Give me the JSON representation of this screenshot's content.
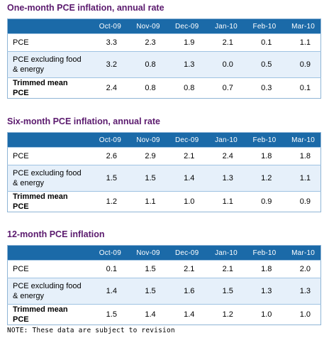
{
  "sections": [
    {
      "title": "One-month PCE inflation, annual rate",
      "columns": [
        "Oct-09",
        "Nov-09",
        "Dec-09",
        "Jan-10",
        "Feb-10",
        "Mar-10"
      ],
      "rows": [
        {
          "label": "PCE",
          "values": [
            "3.3",
            "2.3",
            "1.9",
            "2.1",
            "0.1",
            "1.1"
          ]
        },
        {
          "label": "PCE excluding food & energy",
          "values": [
            "3.2",
            "0.8",
            "1.3",
            "0.0",
            "0.5",
            "0.9"
          ]
        },
        {
          "label": "Trimmed mean PCE",
          "values": [
            "2.4",
            "0.8",
            "0.8",
            "0.7",
            "0.3",
            "0.1"
          ]
        }
      ]
    },
    {
      "title": "Six-month PCE inflation, annual rate",
      "columns": [
        "Oct-09",
        "Nov-09",
        "Dec-09",
        "Jan-10",
        "Feb-10",
        "Mar-10"
      ],
      "rows": [
        {
          "label": "PCE",
          "values": [
            "2.6",
            "2.9",
            "2.1",
            "2.4",
            "1.8",
            "1.8"
          ]
        },
        {
          "label": "PCE excluding food & energy",
          "values": [
            "1.5",
            "1.5",
            "1.4",
            "1.3",
            "1.2",
            "1.1"
          ]
        },
        {
          "label": "Trimmed mean PCE",
          "values": [
            "1.2",
            "1.1",
            "1.0",
            "1.1",
            "0.9",
            "0.9"
          ]
        }
      ]
    },
    {
      "title": "12-month PCE inflation",
      "columns": [
        "Oct-09",
        "Nov-09",
        "Dec-09",
        "Jan-10",
        "Feb-10",
        "Mar-10"
      ],
      "rows": [
        {
          "label": "PCE",
          "values": [
            "0.1",
            "1.5",
            "2.1",
            "2.1",
            "1.8",
            "2.0"
          ]
        },
        {
          "label": "PCE excluding food & energy",
          "values": [
            "1.4",
            "1.5",
            "1.6",
            "1.5",
            "1.3",
            "1.3"
          ]
        },
        {
          "label": "Trimmed mean PCE",
          "values": [
            "1.5",
            "1.4",
            "1.4",
            "1.2",
            "1.0",
            "1.0"
          ]
        }
      ]
    }
  ],
  "note": "NOTE: These data are subject to revision",
  "colors": {
    "title": "#5b1a6e",
    "header_bg": "#1b6aa8",
    "row_alt_bg": "#e6f0fa",
    "border": "#8fb5d6"
  }
}
